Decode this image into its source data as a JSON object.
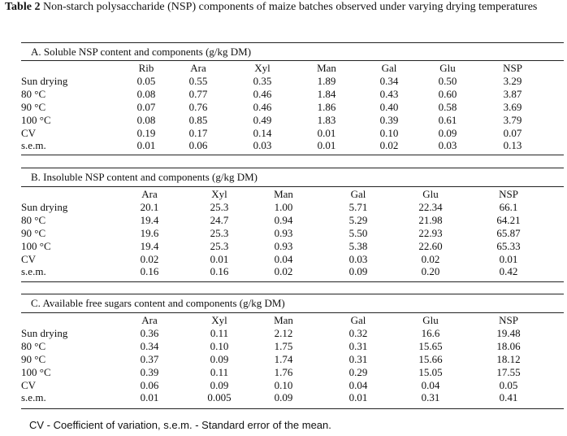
{
  "caption": {
    "label": "Table 2",
    "text": "Non-starch polysaccharide (NSP) components of maize batches observed under varying drying temperatures"
  },
  "sections": [
    {
      "title": "A. Soluble NSP content and components (g/kg DM)",
      "headers": [
        "Rib",
        "Ara",
        "Xyl",
        "Man",
        "Gal",
        "Glu",
        "NSP"
      ],
      "rows": [
        {
          "label": "Sun drying",
          "values": [
            "0.05",
            "0.55",
            "0.35",
            "1.89",
            "0.34",
            "0.50",
            "3.29"
          ]
        },
        {
          "label": "80 °C",
          "values": [
            "0.08",
            "0.77",
            "0.46",
            "1.84",
            "0.43",
            "0.60",
            "3.87"
          ]
        },
        {
          "label": "90 °C",
          "values": [
            "0.07",
            "0.76",
            "0.46",
            "1.86",
            "0.40",
            "0.58",
            "3.69"
          ]
        },
        {
          "label": "100 °C",
          "values": [
            "0.08",
            "0.85",
            "0.49",
            "1.83",
            "0.39",
            "0.61",
            "3.79"
          ]
        },
        {
          "label": "CV",
          "values": [
            "0.19",
            "0.17",
            "0.14",
            "0.01",
            "0.10",
            "0.09",
            "0.07"
          ]
        },
        {
          "label": "s.e.m.",
          "values": [
            "0.01",
            "0.06",
            "0.03",
            "0.01",
            "0.02",
            "0.03",
            "0.13"
          ]
        }
      ]
    },
    {
      "title": "B. Insoluble  NSP content  and components (g/kg DM)",
      "headers": [
        "Ara",
        "Xyl",
        "Man",
        "Gal",
        "Glu",
        "NSP"
      ],
      "rows": [
        {
          "label": "Sun drying",
          "values": [
            "20.1",
            "25.3",
            "1.00",
            "5.71",
            "22.34",
            "66.1"
          ]
        },
        {
          "label": "80 °C",
          "values": [
            "19.4",
            "24.7",
            "0.94",
            "5.29",
            "21.98",
            "64.21"
          ]
        },
        {
          "label": "90 °C",
          "values": [
            "19.6",
            "25.3",
            "0.93",
            "5.50",
            "22.93",
            "65.87"
          ]
        },
        {
          "label": "100 °C",
          "values": [
            "19.4",
            "25.3",
            "0.93",
            "5.38",
            "22.60",
            "65.33"
          ]
        },
        {
          "label": "CV",
          "values": [
            "0.02",
            "0.01",
            "0.04",
            "0.03",
            "0.02",
            "0.01"
          ]
        },
        {
          "label": "s.e.m.",
          "values": [
            "0.16",
            "0.16",
            "0.02",
            "0.09",
            "0.20",
            "0.42"
          ]
        }
      ]
    },
    {
      "title": "C. Available free sugars content and components (g/kg DM)",
      "headers": [
        "Ara",
        "Xyl",
        "Man",
        "Gal",
        "Glu",
        "NSP"
      ],
      "rows": [
        {
          "label": "Sun drying",
          "values": [
            "0.36",
            "0.11",
            "2.12",
            "0.32",
            "16.6",
            "19.48"
          ]
        },
        {
          "label": "80 °C",
          "values": [
            "0.34",
            "0.10",
            "1.75",
            "0.31",
            "15.65",
            "18.06"
          ]
        },
        {
          "label": "90 °C",
          "values": [
            "0.37",
            "0.09",
            "1.74",
            "0.31",
            "15.66",
            "18.12"
          ]
        },
        {
          "label": "100 °C",
          "values": [
            "0.39",
            "0.11",
            "1.76",
            "0.29",
            "15.05",
            "17.55"
          ]
        },
        {
          "label": "CV",
          "values": [
            "0.06",
            "0.09",
            "0.10",
            "0.04",
            "0.04",
            "0.05"
          ]
        },
        {
          "label": "s.e.m.",
          "values": [
            "0.01",
            "0.005",
            "0.09",
            "0.01",
            "0.31",
            "0.41"
          ]
        }
      ]
    }
  ],
  "footnote": "CV - Coefficient of variation, s.e.m. - Standard error of the mean."
}
